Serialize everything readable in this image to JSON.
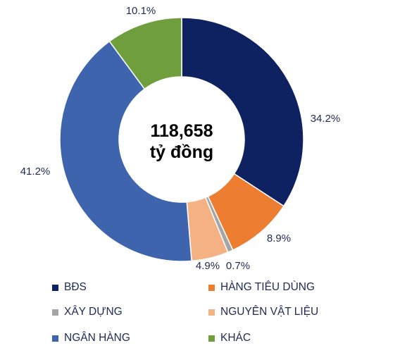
{
  "chart_data": {
    "type": "donut",
    "center_text": [
      "118,658",
      "tỷ đồng"
    ],
    "categories": [
      "BĐS",
      "HÀNG TIÊU DÙNG",
      "XÂY DỰNG",
      "NGUYÊN VẬT LIỆU",
      "NGÂN HÀNG",
      "KHÁC"
    ],
    "values": [
      34.2,
      8.9,
      0.7,
      4.9,
      41.2,
      10.1
    ],
    "labels": [
      "34.2%",
      "8.9%",
      "0.7%",
      "4.9%",
      "41.2%",
      "10.1%"
    ],
    "colors": [
      "#0e2160",
      "#ed7d31",
      "#a5a5a5",
      "#f4b183",
      "#3e64ae",
      "#6f9e3d"
    ],
    "legend_position": "bottom"
  }
}
